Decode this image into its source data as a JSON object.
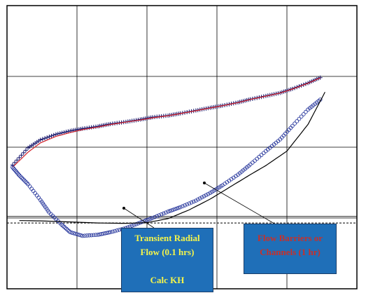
{
  "chart_data": {
    "type": "scatter",
    "title": "",
    "xlabel": "",
    "ylabel": "",
    "xscale": "log",
    "yscale": "log",
    "xlim": [
      0.001,
      100
    ],
    "ylim": [
      1,
      10000
    ],
    "grid": true,
    "legend": "none",
    "series": [
      {
        "style": "plus-markers",
        "color": "#1a1a6e",
        "x": [
          0.0012,
          0.002,
          0.003,
          0.005,
          0.008,
          0.012,
          0.02,
          0.03,
          0.05,
          0.08,
          0.12,
          0.2,
          0.3,
          0.5,
          0.8,
          1.2,
          2,
          3,
          5,
          8,
          12,
          20,
          30
        ],
        "y": [
          56,
          98,
          127,
          152,
          170,
          183,
          197,
          213,
          228,
          246,
          265,
          280,
          300,
          330,
          361,
          387,
          429,
          475,
          530,
          586,
          668,
          806,
          962
        ]
      },
      {
        "style": "line",
        "color": "#d4232a",
        "x": [
          0.0012,
          0.002,
          0.003,
          0.005,
          0.008,
          0.012,
          0.02,
          0.03,
          0.05,
          0.08,
          0.12,
          0.2,
          0.3,
          0.5,
          0.8,
          1.2,
          2,
          3,
          5,
          8,
          12,
          20,
          30
        ],
        "y": [
          52,
          85,
          115,
          142,
          161,
          177,
          193,
          209,
          226,
          242,
          260,
          278,
          298,
          327,
          358,
          385,
          426,
          472,
          526,
          582,
          663,
          800,
          955
        ]
      },
      {
        "style": "circle-markers",
        "color": "#2b3a9e",
        "x": [
          0.0012,
          0.0015,
          0.002,
          0.003,
          0.004,
          0.006,
          0.008,
          0.012,
          0.02,
          0.03,
          0.05,
          0.08,
          0.12,
          0.2,
          0.3,
          0.5,
          0.8,
          1.2,
          2,
          3,
          5,
          8,
          12,
          20,
          30
        ],
        "y": [
          52,
          40,
          30,
          18,
          12,
          8.1,
          6.3,
          5.6,
          5.8,
          6.3,
          7.2,
          8.6,
          10,
          12.3,
          14.2,
          17.6,
          22.6,
          29,
          41,
          57,
          88,
          129,
          200,
          340,
          470
        ]
      },
      {
        "style": "line",
        "color": "#000000",
        "x": [
          0.0015,
          0.003,
          0.008,
          0.02,
          0.05,
          0.1,
          0.2,
          0.4,
          0.8,
          1.5,
          3,
          5,
          10,
          20,
          35
        ],
        "y": [
          9.2,
          9.1,
          8.8,
          8.5,
          8.4,
          8.6,
          9.8,
          13,
          18.5,
          27,
          41,
          55,
          88,
          210,
          600
        ]
      }
    ],
    "reference_lines": [
      {
        "style": "solid",
        "y": 10.5
      },
      {
        "style": "dashed",
        "y": 8.5
      }
    ],
    "annotations": [
      {
        "lines": [
          "Transient Radial",
          "Flow (0.1 hrs)",
          "",
          "Calc KH"
        ],
        "text_color": "#f5f54a",
        "box_color": "#1f6fb8"
      },
      {
        "lines": [
          "Flow Barriers or",
          "Channels (1 hr)"
        ],
        "text_color": "#c8302a",
        "box_color": "#1f6fb8"
      }
    ]
  }
}
